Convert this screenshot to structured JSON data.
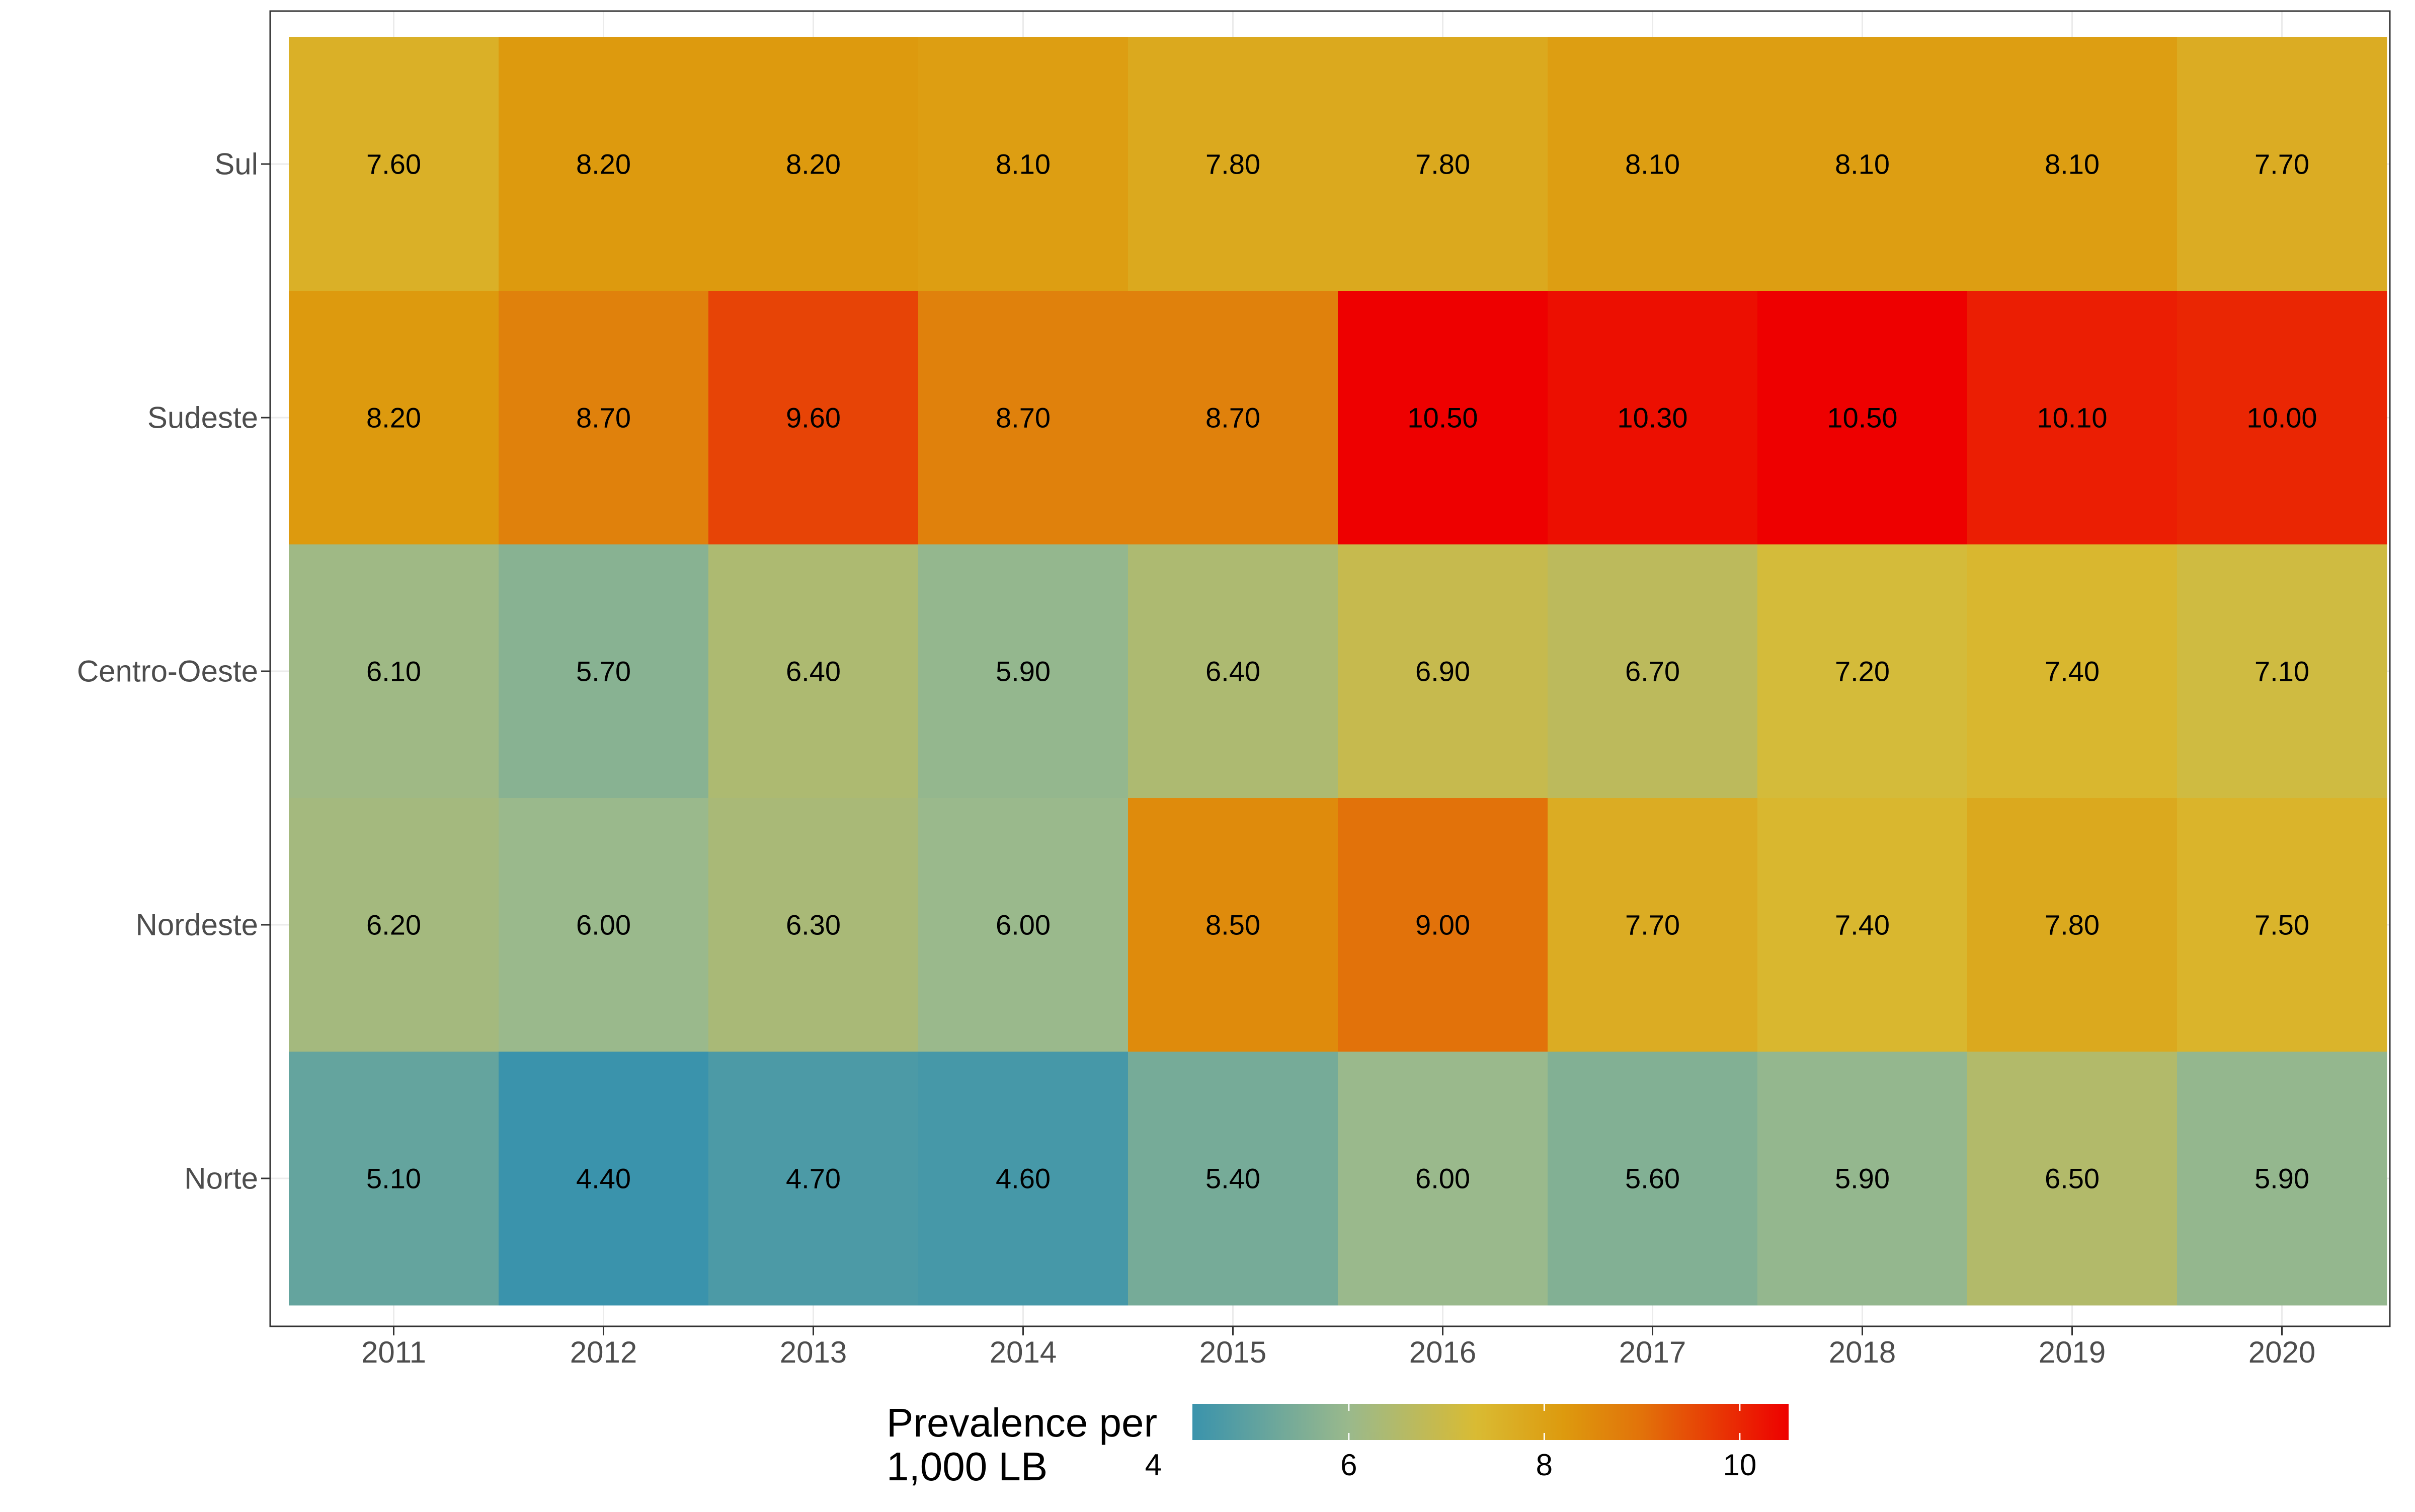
{
  "chart_data": {
    "type": "heatmap",
    "x_categories": [
      "2011",
      "2012",
      "2013",
      "2014",
      "2015",
      "2016",
      "2017",
      "2018",
      "2019",
      "2020"
    ],
    "y_categories": [
      "Sul",
      "Sudeste",
      "Centro-Oeste",
      "Nordeste",
      "Norte"
    ],
    "values": [
      [
        7.6,
        8.2,
        8.2,
        8.1,
        7.8,
        7.8,
        8.1,
        8.1,
        8.1,
        7.7
      ],
      [
        8.2,
        8.7,
        9.6,
        8.7,
        8.7,
        10.5,
        10.3,
        10.5,
        10.1,
        10.0
      ],
      [
        6.1,
        5.7,
        6.4,
        5.9,
        6.4,
        6.9,
        6.7,
        7.2,
        7.4,
        7.1
      ],
      [
        6.2,
        6.0,
        6.3,
        6.0,
        8.5,
        9.0,
        7.7,
        7.4,
        7.8,
        7.5
      ],
      [
        5.1,
        4.4,
        4.7,
        4.6,
        5.4,
        6.0,
        5.6,
        5.9,
        6.5,
        5.9
      ]
    ],
    "cell_labels": [
      [
        "7.60",
        "8.20",
        "8.20",
        "8.10",
        "7.80",
        "7.80",
        "8.10",
        "8.10",
        "8.10",
        "7.70"
      ],
      [
        "8.20",
        "8.70",
        "9.60",
        "8.70",
        "8.70",
        "10.50",
        "10.30",
        "10.50",
        "10.10",
        "10.00"
      ],
      [
        "6.10",
        "5.70",
        "6.40",
        "5.90",
        "6.40",
        "6.90",
        "6.70",
        "7.20",
        "7.40",
        "7.10"
      ],
      [
        "6.20",
        "6.00",
        "6.30",
        "6.00",
        "8.50",
        "9.00",
        "7.70",
        "7.40",
        "7.80",
        "7.50"
      ],
      [
        "5.10",
        "4.40",
        "4.70",
        "4.60",
        "5.40",
        "6.00",
        "5.60",
        "5.90",
        "6.50",
        "5.90"
      ]
    ],
    "color_scale": {
      "min": 4.4,
      "max": 10.5,
      "stops": [
        {
          "value": 4.4,
          "color": "#3A93AC"
        },
        {
          "value": 6.0,
          "color": "#9AB98C"
        },
        {
          "value": 7.3,
          "color": "#D9BB33"
        },
        {
          "value": 8.2,
          "color": "#DD9A0E"
        },
        {
          "value": 9.0,
          "color": "#E2720A"
        },
        {
          "value": 10.5,
          "color": "#EE0000"
        }
      ]
    },
    "legend": {
      "title_lines": [
        "Prevalence per",
        "1,000 LB"
      ],
      "ticks": [
        "4",
        "6",
        "8",
        "10"
      ],
      "tick_values": [
        4,
        6,
        8,
        10
      ],
      "placement": "bottom"
    },
    "grid": true
  }
}
